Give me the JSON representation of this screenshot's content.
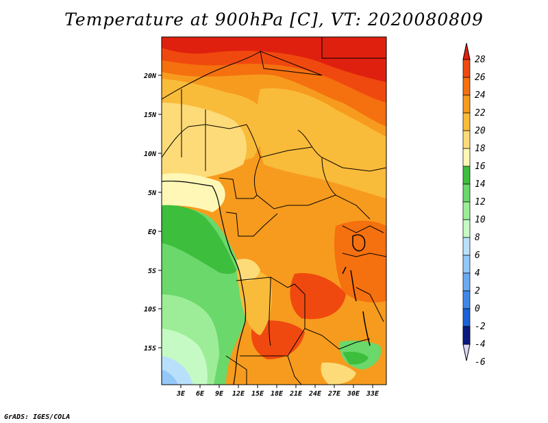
{
  "title": "Temperature at 900hPa [C], VT: 2020080809",
  "credit": "GrADS: IGES/COLA",
  "lon_labels": [
    "3E",
    "6E",
    "9E",
    "12E",
    "15E",
    "18E",
    "21E",
    "24E",
    "27E",
    "30E",
    "33E"
  ],
  "lat_labels": [
    "20N",
    "15N",
    "10N",
    "5N",
    "EQ",
    "5S",
    "10S",
    "15S"
  ],
  "colorbar": {
    "levels": [
      "28",
      "26",
      "24",
      "22",
      "20",
      "18",
      "16",
      "14",
      "12",
      "10",
      "8",
      "6",
      "4",
      "2",
      "0",
      "-2",
      "-4",
      "-6"
    ],
    "colors": [
      "#e0200f",
      "#f0490f",
      "#f5700f",
      "#f79b1e",
      "#f9bb3a",
      "#fddb79",
      "#fff7b6",
      "#3dbe3d",
      "#6ad86a",
      "#9ded98",
      "#c6fac4",
      "#b8e0fa",
      "#93c8f8",
      "#6aaaf3",
      "#3f88ea",
      "#1c62d8",
      "#0d3fb8",
      "#0a1a80"
    ]
  }
}
